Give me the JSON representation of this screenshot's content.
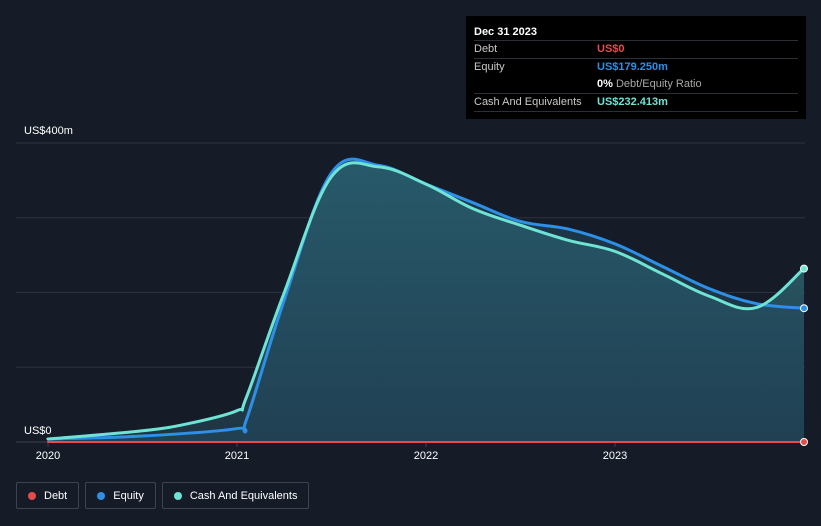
{
  "tooltip": {
    "date": "Dec 31 2023",
    "debt_label": "Debt",
    "debt_value": "US$0",
    "equity_label": "Equity",
    "equity_value": "US$179.250m",
    "ratio_value": "0%",
    "ratio_label": "Debt/Equity Ratio",
    "cash_label": "Cash And Equivalents",
    "cash_value": "US$232.413m"
  },
  "colors": {
    "background": "#151c27",
    "debt": "#e64b4b",
    "equity": "#2d8fe6",
    "cash": "#6fe3d4",
    "area_fill_top": "#2f6e78",
    "area_fill_bottom": "#1f3442"
  },
  "legend": [
    {
      "name": "Debt",
      "color": "#e64b4b"
    },
    {
      "name": "Equity",
      "color": "#2d8fe6"
    },
    {
      "name": "Cash And Equivalents",
      "color": "#6fe3d4"
    }
  ],
  "chart_data": {
    "type": "area",
    "title": "",
    "ylabel_top": "US$400m",
    "ylabel_bottom": "US$0",
    "ylim": [
      0,
      400
    ],
    "xlim": [
      2020.0,
      2024.0
    ],
    "x_ticks": [
      "2020",
      "2021",
      "2022",
      "2023"
    ],
    "x_tick_values": [
      2020.0,
      2021.0,
      2022.0,
      2023.0
    ],
    "grid": true,
    "legend_position": "bottom-left",
    "series": [
      {
        "name": "Debt",
        "x": [
          2020.0,
          2024.0
        ],
        "y": [
          0,
          0
        ]
      },
      {
        "name": "Equity",
        "x": [
          2020.0,
          2020.5,
          2021.0,
          2021.05,
          2021.25,
          2021.5,
          2021.75,
          2022.0,
          2022.25,
          2022.5,
          2022.75,
          2023.0,
          2023.25,
          2023.5,
          2023.75,
          2024.0
        ],
        "y": [
          4,
          8,
          18,
          30,
          190,
          360,
          370,
          345,
          320,
          295,
          285,
          265,
          235,
          205,
          185,
          179
        ]
      },
      {
        "name": "Cash And Equivalents",
        "x": [
          2020.0,
          2020.5,
          2020.75,
          2021.0,
          2021.05,
          2021.25,
          2021.5,
          2021.75,
          2022.0,
          2022.25,
          2022.5,
          2022.75,
          2023.0,
          2023.25,
          2023.5,
          2023.75,
          2024.0
        ],
        "y": [
          4,
          15,
          25,
          42,
          60,
          200,
          355,
          368,
          345,
          312,
          290,
          270,
          255,
          225,
          195,
          180,
          232
        ]
      }
    ]
  }
}
